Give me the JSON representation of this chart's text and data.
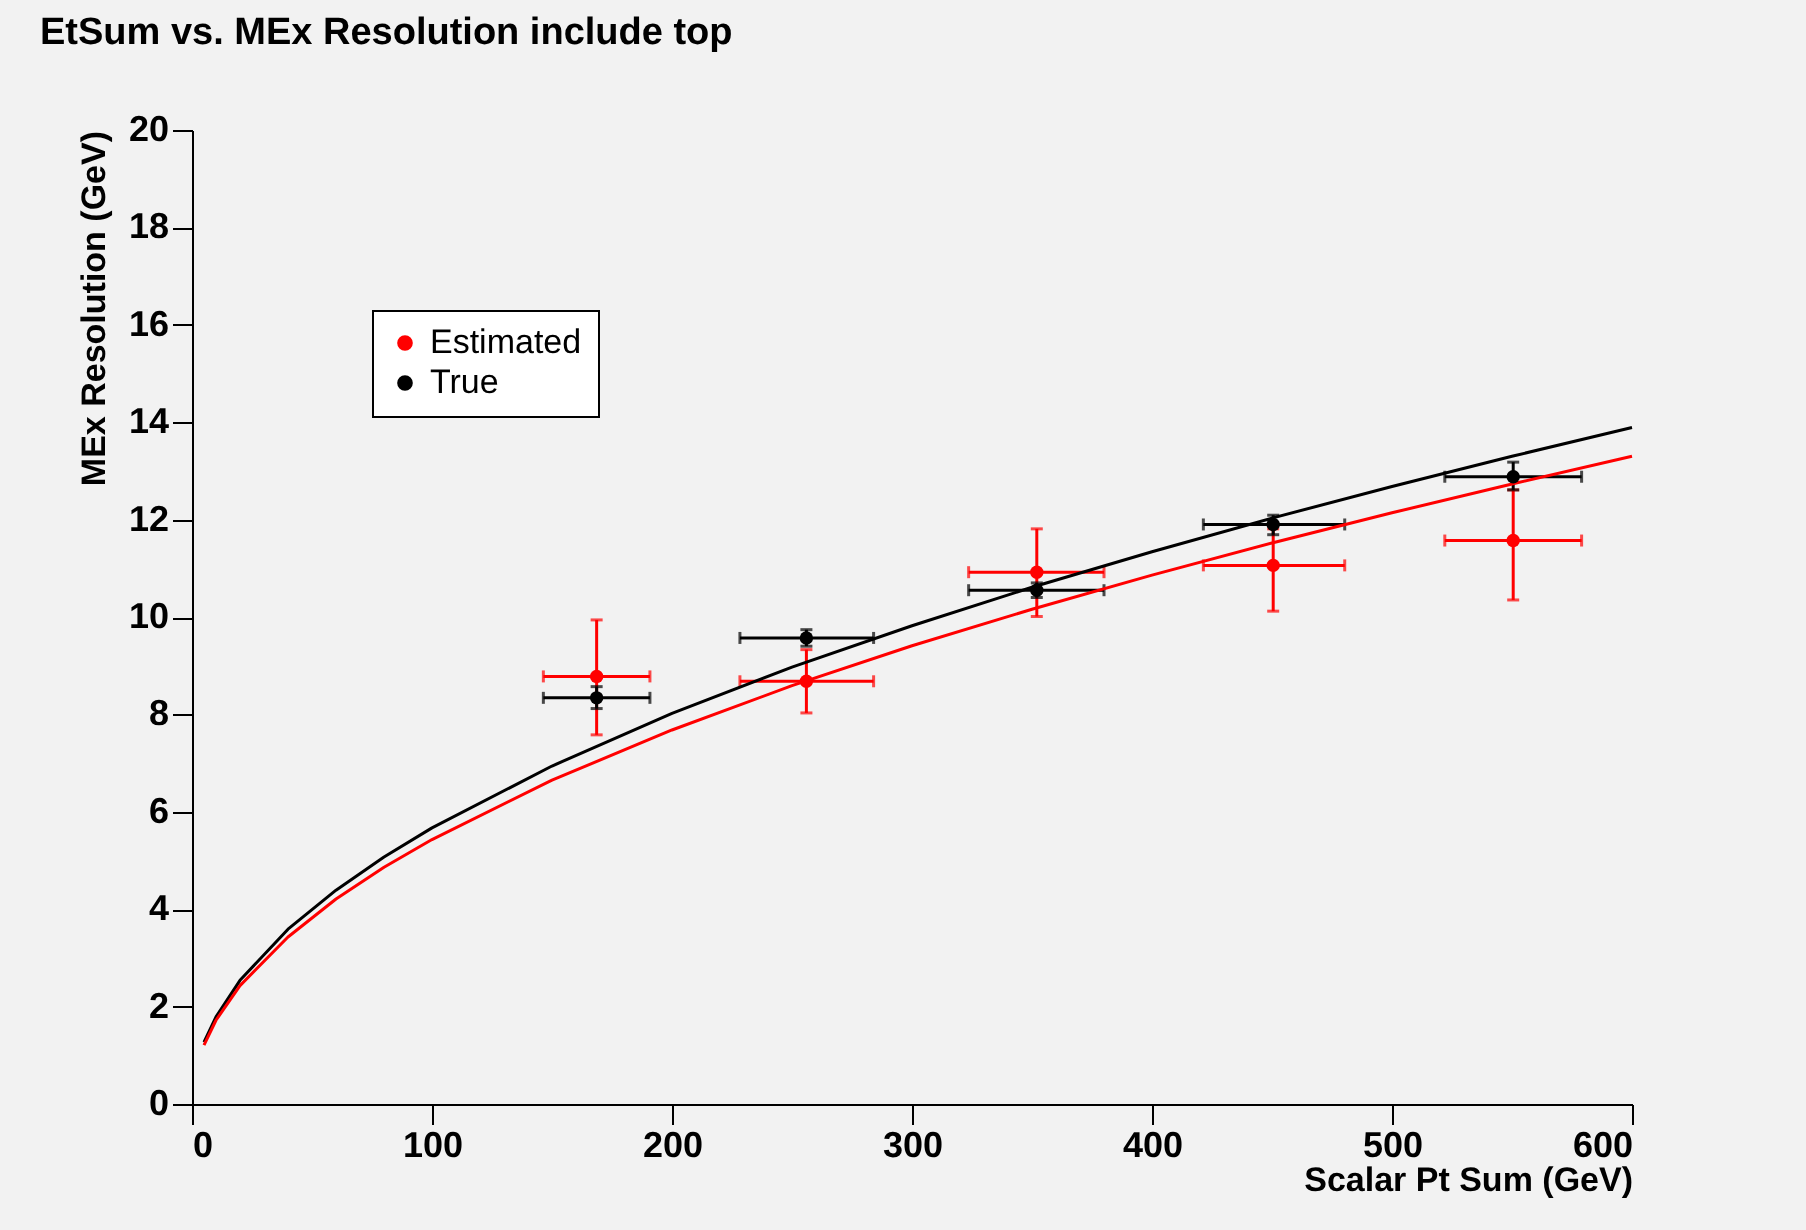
{
  "chart_data": {
    "type": "scatter",
    "title": "EtSum vs. MEx Resolution include top",
    "xlabel": "Scalar Pt Sum  (GeV)",
    "ylabel": "MEx Resolution (GeV)",
    "xlim": [
      0,
      600
    ],
    "xticks": [
      0,
      100,
      200,
      300,
      400,
      500,
      600
    ],
    "ylim": [
      0,
      20
    ],
    "yticks": [
      0,
      2,
      4,
      6,
      8,
      10,
      12,
      14,
      16,
      18,
      20
    ],
    "legend": "top left",
    "grid": false,
    "marker": "circle",
    "series": [
      {
        "name": "Estimated",
        "color": "#ff0000",
        "x": [
          168.6,
          256,
          352,
          450.5,
          550.5
        ],
        "values": [
          8.78,
          8.68,
          10.92,
          11.06,
          11.57
        ],
        "errors": [
          [
            7.58,
            9.94
          ],
          [
            8.03,
            9.33
          ],
          [
            10.01,
            11.81
          ],
          [
            10.12,
            11.81
          ],
          [
            10.35,
            12.61
          ]
        ],
        "xerrors": [
          [
            146.4,
            190.8
          ],
          [
            228.3,
            284
          ],
          [
            323.6,
            380
          ],
          [
            421.4,
            480.3
          ],
          [
            522,
            579
          ]
        ]
      },
      {
        "name": "True",
        "color": "#000000",
        "x": [
          168.6,
          256,
          352,
          450.5,
          550.5
        ],
        "values": [
          8.34,
          9.57,
          10.55,
          11.9,
          12.88
        ],
        "errors": [
          [
            8.12,
            8.57
          ],
          [
            9.4,
            9.74
          ],
          [
            10.4,
            10.7
          ],
          [
            11.69,
            12.09
          ],
          [
            12.61,
            13.18
          ]
        ],
        "xerrors": [
          [
            146.4,
            190.8
          ],
          [
            228.3,
            284
          ],
          [
            323.6,
            380
          ],
          [
            421.4,
            480.3
          ],
          [
            522,
            579
          ]
        ]
      },
      {
        "type": "line",
        "marker": "none",
        "color": "#000000",
        "x": [
          5,
          10,
          20,
          40,
          60,
          80,
          100,
          150,
          200,
          250,
          300,
          350,
          400,
          450,
          500,
          550,
          600
        ],
        "values": [
          1.27,
          1.79,
          2.54,
          3.59,
          4.39,
          5.07,
          5.67,
          6.94,
          8.02,
          8.97,
          9.82,
          10.61,
          11.34,
          12.03,
          12.68,
          13.3,
          13.89
        ]
      },
      {
        "type": "line",
        "marker": "none",
        "color": "#ff0000",
        "x": [
          5,
          10,
          20,
          40,
          60,
          80,
          100,
          150,
          200,
          250,
          300,
          350,
          400,
          450,
          500,
          550,
          600
        ],
        "values": [
          1.21,
          1.72,
          2.43,
          3.43,
          4.21,
          4.86,
          5.43,
          6.65,
          7.68,
          8.59,
          9.41,
          10.16,
          10.86,
          11.52,
          12.14,
          12.73,
          13.3
        ]
      }
    ]
  }
}
